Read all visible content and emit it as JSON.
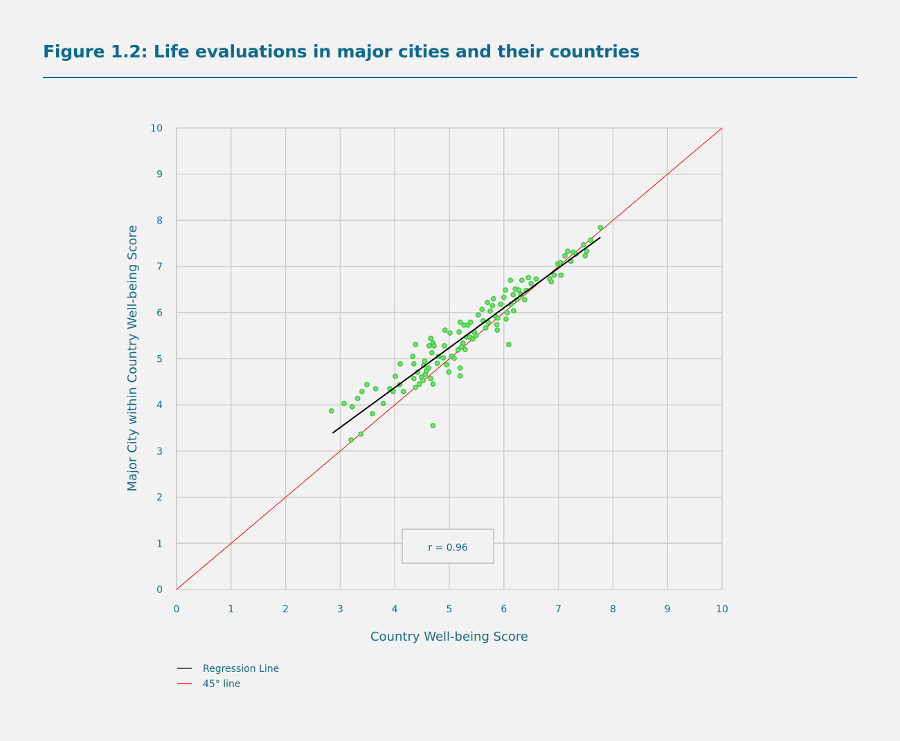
{
  "title": "Figure 1.2: Life evaluations in major cities and their countries",
  "chart_data": {
    "type": "scatter",
    "title": "Figure 1.2: Life evaluations in major cities and their countries",
    "xlabel": "Country Well-being Score",
    "ylabel": "Major City within Country Well-being Score",
    "xlim": [
      0,
      10
    ],
    "ylim": [
      0,
      10
    ],
    "xticks": [
      "0",
      "1",
      "2",
      "3",
      "4",
      "5",
      "6",
      "7",
      "8",
      "9",
      "10"
    ],
    "yticks": [
      "0",
      "1",
      "2",
      "3",
      "4",
      "5",
      "6",
      "7",
      "8",
      "9",
      "10"
    ],
    "grid": true,
    "annotation": "r = 0.96",
    "legend": {
      "placement": "bottom-left",
      "entries": [
        {
          "label": "Regression Line",
          "color": "#000000"
        },
        {
          "label": "45° line",
          "color": "#ff0000"
        }
      ]
    },
    "regression_line": [
      [
        2.86,
        3.39
      ],
      [
        7.77,
        7.63
      ]
    ],
    "diagonal_line": [
      [
        0,
        0
      ],
      [
        10,
        10
      ]
    ],
    "point_color": "#44cc44",
    "points": [
      [
        2.84,
        3.87
      ],
      [
        3.07,
        4.03
      ],
      [
        3.22,
        3.96
      ],
      [
        3.32,
        4.14
      ],
      [
        3.4,
        4.29
      ],
      [
        3.49,
        4.44
      ],
      [
        3.65,
        4.35
      ],
      [
        3.59,
        3.81
      ],
      [
        3.2,
        3.24
      ],
      [
        3.38,
        3.37
      ],
      [
        3.79,
        4.03
      ],
      [
        3.91,
        4.35
      ],
      [
        3.97,
        4.29
      ],
      [
        4.01,
        4.62
      ],
      [
        4.09,
        4.44
      ],
      [
        4.1,
        4.89
      ],
      [
        4.16,
        4.29
      ],
      [
        4.33,
        5.05
      ],
      [
        4.38,
        5.31
      ],
      [
        4.35,
        4.89
      ],
      [
        4.35,
        4.57
      ],
      [
        4.38,
        4.38
      ],
      [
        4.42,
        4.71
      ],
      [
        4.45,
        4.45
      ],
      [
        4.49,
        4.6
      ],
      [
        4.52,
        4.53
      ],
      [
        4.53,
        4.86
      ],
      [
        4.55,
        4.95
      ],
      [
        4.56,
        4.66
      ],
      [
        4.58,
        4.74
      ],
      [
        4.62,
        4.8
      ],
      [
        4.63,
        5.28
      ],
      [
        4.66,
        5.44
      ],
      [
        4.68,
        5.13
      ],
      [
        4.7,
        5.34
      ],
      [
        4.72,
        5.28
      ],
      [
        4.66,
        4.57
      ],
      [
        4.7,
        4.45
      ],
      [
        4.7,
        3.55
      ],
      [
        4.78,
        4.9
      ],
      [
        4.8,
        5.05
      ],
      [
        4.89,
        5.02
      ],
      [
        4.91,
        5.28
      ],
      [
        4.92,
        5.62
      ],
      [
        4.99,
        4.71
      ],
      [
        5.01,
        5.56
      ],
      [
        5.04,
        5.05
      ],
      [
        5.09,
        5.01
      ],
      [
        4.95,
        4.87
      ],
      [
        5.2,
        4.8
      ],
      [
        5.2,
        4.63
      ],
      [
        5.16,
        5.19
      ],
      [
        5.18,
        5.58
      ],
      [
        5.2,
        5.79
      ],
      [
        5.22,
        5.25
      ],
      [
        5.25,
        5.34
      ],
      [
        5.27,
        5.73
      ],
      [
        5.29,
        5.2
      ],
      [
        5.32,
        5.47
      ],
      [
        5.34,
        5.73
      ],
      [
        5.37,
        5.47
      ],
      [
        5.39,
        5.79
      ],
      [
        5.43,
        5.43
      ],
      [
        5.46,
        5.58
      ],
      [
        5.49,
        5.5
      ],
      [
        5.53,
        5.95
      ],
      [
        5.6,
        6.07
      ],
      [
        5.62,
        5.82
      ],
      [
        5.67,
        5.67
      ],
      [
        5.7,
        6.22
      ],
      [
        5.71,
        5.79
      ],
      [
        5.75,
        6.03
      ],
      [
        5.79,
        6.15
      ],
      [
        5.81,
        6.3
      ],
      [
        5.85,
        5.91
      ],
      [
        5.87,
        5.74
      ],
      [
        5.88,
        5.62
      ],
      [
        5.89,
        5.88
      ],
      [
        5.94,
        6.18
      ],
      [
        6.0,
        6.33
      ],
      [
        6.03,
        6.49
      ],
      [
        6.04,
        5.86
      ],
      [
        6.06,
        6.0
      ],
      [
        6.09,
        5.31
      ],
      [
        6.12,
        6.7
      ],
      [
        6.13,
        6.18
      ],
      [
        6.17,
        6.39
      ],
      [
        6.18,
        6.04
      ],
      [
        6.21,
        6.51
      ],
      [
        6.24,
        6.28
      ],
      [
        6.27,
        6.49
      ],
      [
        6.31,
        6.4
      ],
      [
        6.33,
        6.7
      ],
      [
        6.38,
        6.28
      ],
      [
        6.41,
        6.48
      ],
      [
        6.45,
        6.76
      ],
      [
        6.5,
        6.63
      ],
      [
        6.59,
        6.73
      ],
      [
        6.84,
        6.73
      ],
      [
        6.87,
        6.67
      ],
      [
        6.92,
        6.81
      ],
      [
        6.99,
        7.06
      ],
      [
        7.04,
        7.08
      ],
      [
        7.05,
        6.81
      ],
      [
        7.12,
        7.23
      ],
      [
        7.17,
        7.33
      ],
      [
        7.23,
        7.11
      ],
      [
        7.27,
        7.31
      ],
      [
        7.32,
        7.27
      ],
      [
        7.46,
        7.47
      ],
      [
        7.49,
        7.23
      ],
      [
        7.52,
        7.33
      ],
      [
        7.59,
        7.57
      ],
      [
        7.77,
        7.84
      ]
    ]
  }
}
